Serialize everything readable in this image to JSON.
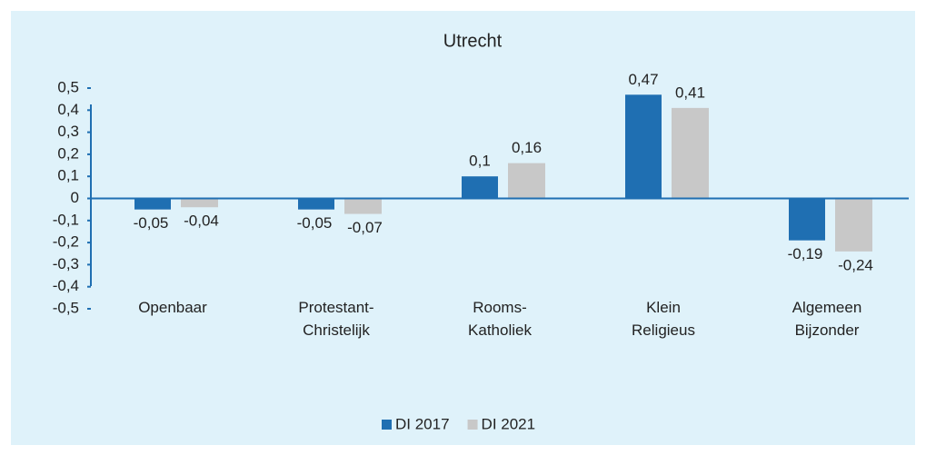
{
  "chart_data": {
    "type": "bar",
    "title": "Utrecht",
    "categories": [
      "Openbaar",
      "Protestant-Christelijk",
      "Rooms-Katholiek",
      "Klein Religieus",
      "Algemeen Bijzonder"
    ],
    "series": [
      {
        "name": "DI 2017",
        "color": "#1f6fb2",
        "values": [
          -0.05,
          -0.05,
          0.1,
          0.47,
          -0.19
        ],
        "value_labels": [
          "-0,05",
          "-0,05",
          "0,1",
          "0,47",
          "-0,19"
        ]
      },
      {
        "name": "DI 2021",
        "color": "#c8c8c8",
        "values": [
          -0.04,
          -0.07,
          0.16,
          0.41,
          -0.24
        ],
        "value_labels": [
          "-0,04",
          "-0,07",
          "0,16",
          "0,41",
          "-0,24"
        ]
      }
    ],
    "ylim": [
      -0.5,
      0.5
    ],
    "yticks": [
      {
        "value": 0.5,
        "label": "0,5"
      },
      {
        "value": 0.4,
        "label": "0,4"
      },
      {
        "value": 0.3,
        "label": "0,3"
      },
      {
        "value": 0.2,
        "label": "0,2"
      },
      {
        "value": 0.1,
        "label": "0,1"
      },
      0,
      {
        "value": -0.1,
        "label": "-0,1"
      },
      {
        "value": -0.2,
        "label": "-0,2"
      },
      {
        "value": -0.3,
        "label": "-0,3"
      },
      {
        "value": -0.4,
        "label": "-0,4"
      },
      {
        "value": -0.5,
        "label": "-0,5"
      }
    ],
    "legend": "bottom"
  }
}
